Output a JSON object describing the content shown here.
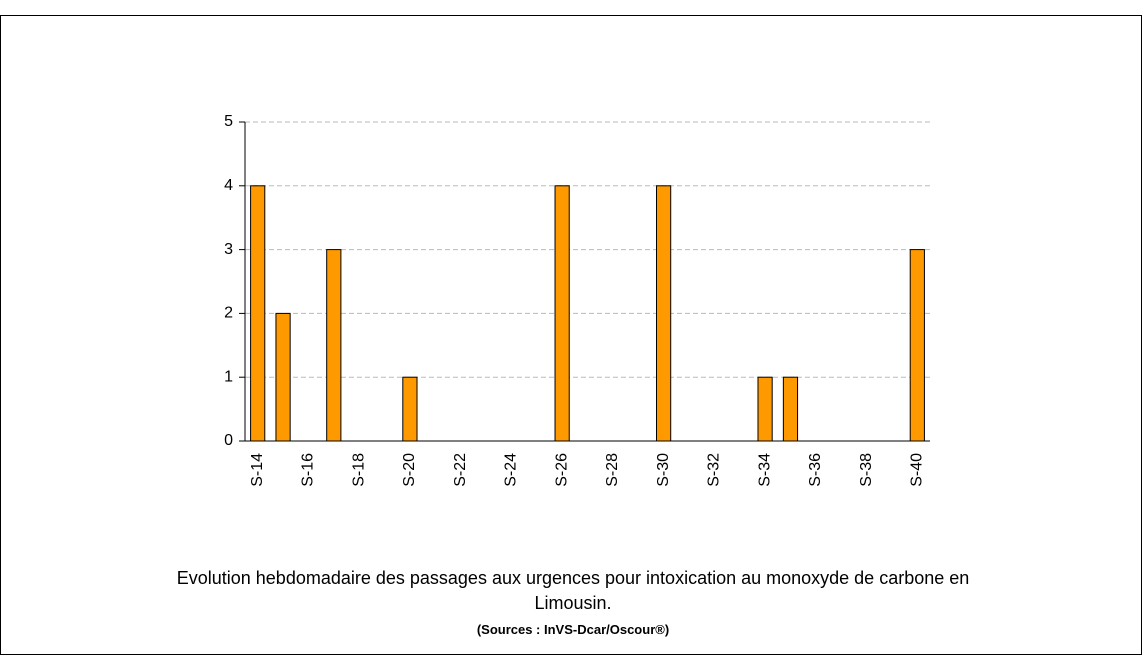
{
  "chart_data": {
    "type": "bar",
    "title": "Evolution hebdomadaire des passages aux urgences pour intoxication au monoxyde de carbone en Limousin.",
    "source": "(Sources : InVS-Dcar/Oscour®)",
    "categories": [
      "S-14",
      null,
      "S-16",
      null,
      "S-18",
      null,
      "S-20",
      null,
      "S-22",
      null,
      "S-24",
      null,
      "S-26",
      null,
      "S-28",
      null,
      "S-30",
      null,
      "S-32",
      null,
      "S-34",
      null,
      "S-36",
      null,
      "S-38",
      null,
      "S-40"
    ],
    "values": [
      4,
      2,
      0,
      3,
      0,
      0,
      1,
      0,
      0,
      0,
      0,
      0,
      4,
      0,
      0,
      0,
      4,
      0,
      0,
      0,
      1,
      1,
      0,
      0,
      0,
      0,
      3
    ],
    "color": "#ff9900",
    "ylim": [
      0,
      5
    ],
    "yticks": [
      0,
      1,
      2,
      3,
      4,
      5
    ],
    "grid": true
  }
}
